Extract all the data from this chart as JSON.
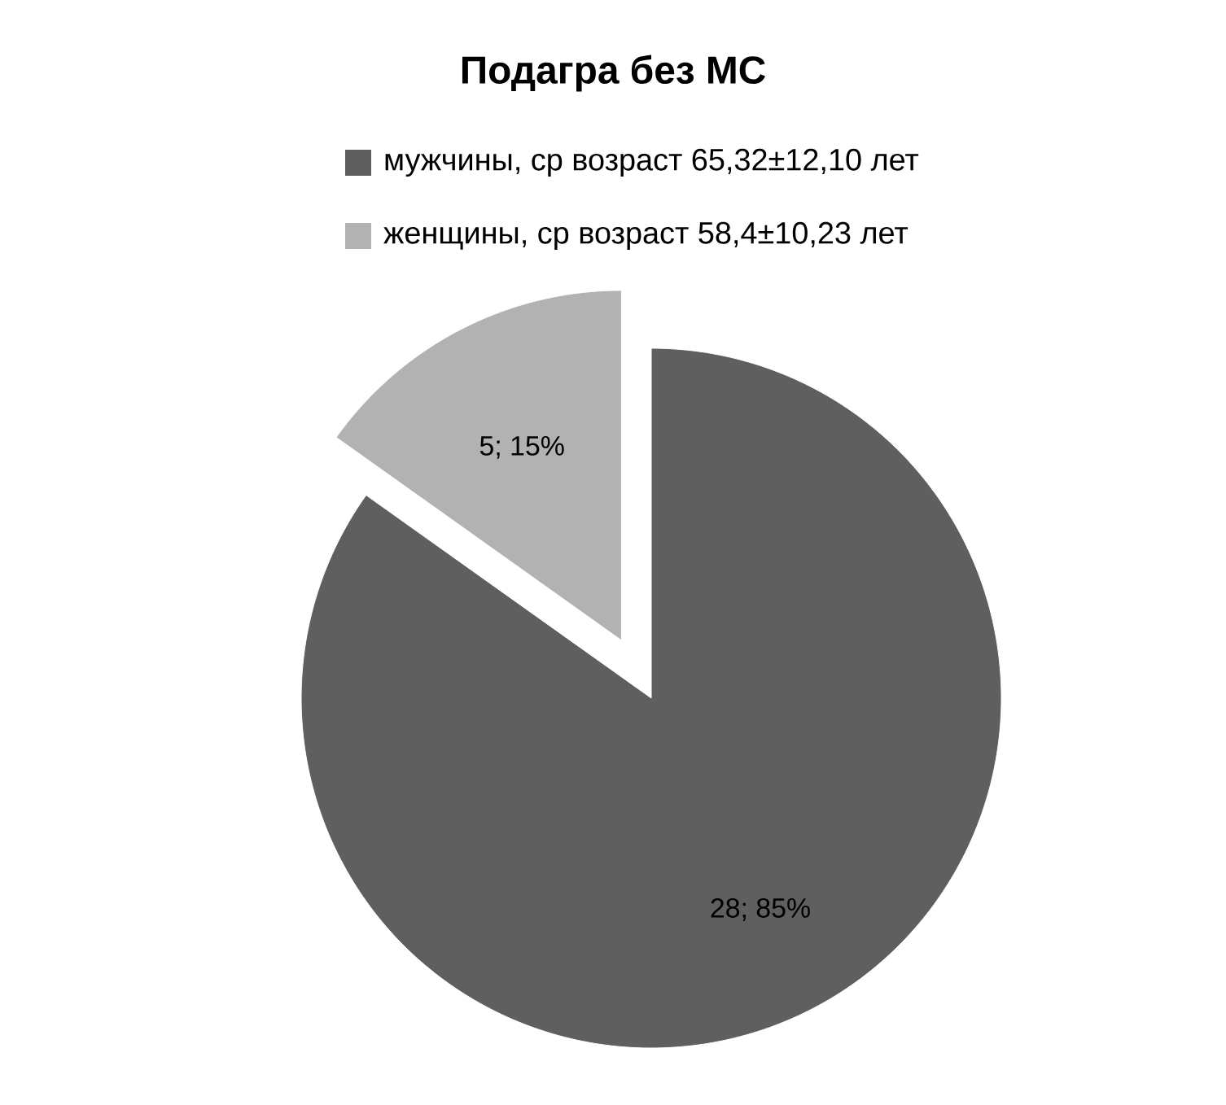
{
  "chart_data": {
    "type": "pie",
    "title": "Подагра без МС",
    "categories": [
      "мужчины, ср возраст 65,32±12,10 лет",
      "женщины, ср возраст 58,4±10,23 лет"
    ],
    "values": [
      28,
      5
    ],
    "value_labels": [
      "28; 85%",
      "5; 15%"
    ],
    "colors": [
      "#5f5f5f",
      "#b2b2b2"
    ],
    "legend": "top"
  }
}
